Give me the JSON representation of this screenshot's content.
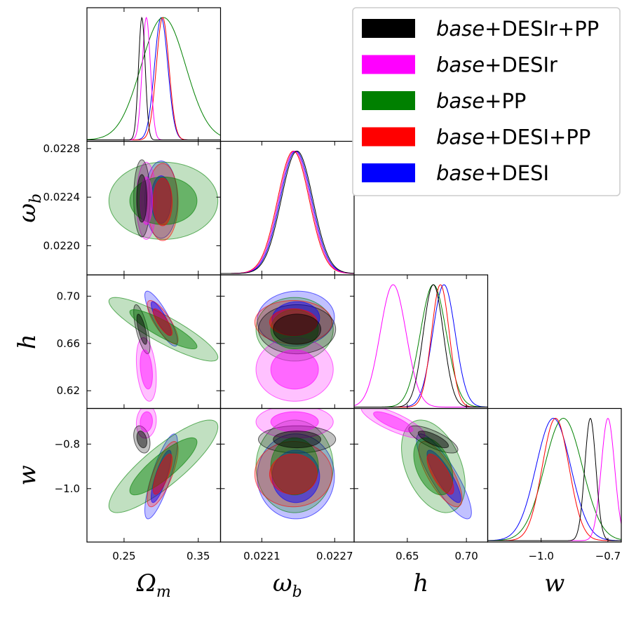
{
  "chart_data": {
    "type": "triangle",
    "title": "",
    "parameters": [
      {
        "name": "Omega_m",
        "label": "Ωm",
        "label_main": "Ω",
        "label_sub": "m",
        "range": [
          0.2,
          0.38
        ],
        "ticks": [
          0.25,
          0.35
        ],
        "tick_labels": [
          "0.25",
          "0.35"
        ]
      },
      {
        "name": "omega_b",
        "label": "ωb",
        "label_main": "ω",
        "label_sub": "b",
        "range": [
          0.02176,
          0.02286
        ],
        "ticks": [
          0.0221,
          0.0227
        ],
        "tick_labels": [
          "0.0221",
          "0.0227"
        ],
        "y_ticks": [
          0.022,
          0.0224,
          0.0228
        ],
        "y_tick_labels": [
          "0.0220",
          "0.0224",
          "0.0228"
        ]
      },
      {
        "name": "h",
        "label": "h",
        "range": [
          0.605,
          0.718
        ],
        "ticks": [
          0.65,
          0.7
        ],
        "tick_labels": [
          "0.65",
          "0.70"
        ],
        "y_ticks": [
          0.62,
          0.66,
          0.7
        ],
        "y_tick_labels": [
          "0.62",
          "0.66",
          "0.70"
        ]
      },
      {
        "name": "w",
        "label": "w",
        "range": [
          -1.24,
          -0.64
        ],
        "ticks": [
          -1.0,
          -0.7
        ],
        "tick_labels": [
          "−1.0",
          "−0.7"
        ],
        "y_ticks": [
          -0.8,
          -1.0
        ],
        "y_tick_labels": [
          "−0.8",
          "−1.0"
        ]
      }
    ],
    "series": [
      {
        "name": "base+DESI",
        "legend_italic": "base",
        "legend_rest": "+DESI",
        "color": "#0000ff",
        "mean": [
          0.3,
          0.02238,
          0.681,
          -0.945
        ],
        "sigma": [
          0.009,
          0.00013,
          0.0095,
          0.078
        ],
        "corr": {
          "0-1": 0.0,
          "0-2": -0.85,
          "0-3": 0.8,
          "1-2": 0.05,
          "1-3": 0.0,
          "2-3": -0.85
        }
      },
      {
        "name": "base+PP",
        "legend_italic": "base",
        "legend_rest": "+PP",
        "color": "#008000",
        "mean": [
          0.303,
          0.02237,
          0.672,
          -0.9
        ],
        "sigma": [
          0.03,
          0.00013,
          0.011,
          0.085
        ],
        "corr": {
          "0-1": 0.0,
          "0-2": -0.88,
          "0-3": 0.85,
          "1-2": 0.0,
          "1-3": 0.0,
          "2-3": -0.4
        }
      },
      {
        "name": "base+DESI+PP",
        "legend_italic": "base",
        "legend_rest": "+DESI+PP",
        "color": "#ff0000",
        "mean": [
          0.302,
          0.02236,
          0.678,
          -0.935
        ],
        "sigma": [
          0.0085,
          0.00013,
          0.0075,
          0.06
        ],
        "corr": {
          "0-1": 0.0,
          "0-2": -0.8,
          "0-3": 0.75,
          "1-2": 0.0,
          "1-3": 0.0,
          "2-3": -0.75
        }
      },
      {
        "name": "base+DESIr",
        "legend_italic": "base",
        "legend_rest": "+DESIr",
        "color": "#ff00ff",
        "mean": [
          0.28,
          0.02237,
          0.638,
          -0.7
        ],
        "sigma": [
          0.0055,
          0.00013,
          0.011,
          0.03
        ],
        "corr": {
          "0-1": 0.0,
          "0-2": -0.3,
          "0-3": 0.1,
          "1-2": 0.0,
          "1-3": 0.0,
          "2-3": -0.8
        }
      },
      {
        "name": "base+DESIr+PP",
        "legend_italic": "base",
        "legend_rest": "+DESIr+PP",
        "color": "#000000",
        "mean": [
          0.274,
          0.02239,
          0.672,
          -0.779
        ],
        "sigma": [
          0.0045,
          0.00013,
          0.0085,
          0.025
        ],
        "corr": {
          "0-1": 0.0,
          "0-2": -0.7,
          "0-3": -0.3,
          "1-2": 0.0,
          "1-3": 0.0,
          "2-3": -0.75
        }
      }
    ],
    "legend_position": "top-right",
    "contour_levels": [
      "68%",
      "95%"
    ]
  }
}
